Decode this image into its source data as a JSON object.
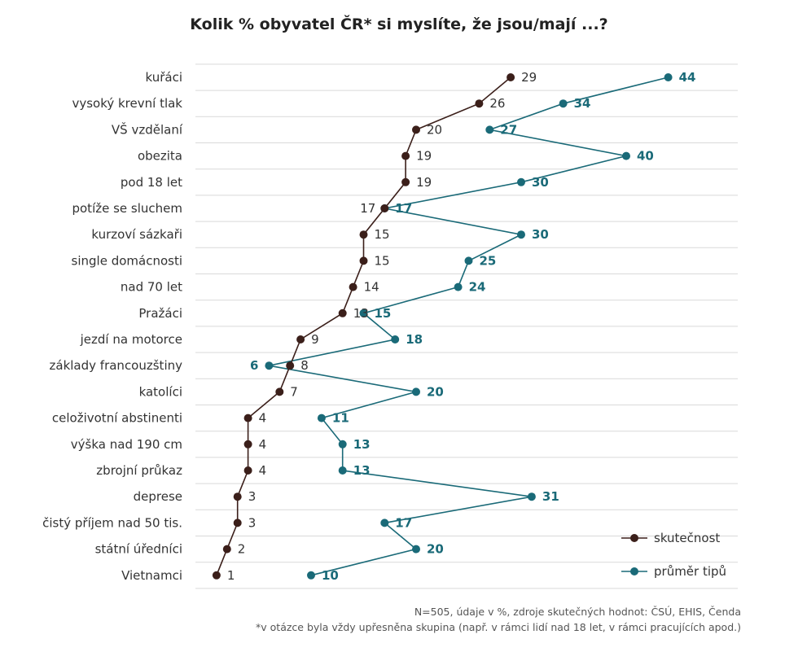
{
  "chart_data": {
    "type": "line",
    "title": "Kolik % obyvatel ČR* si myslíte, že jsou/mají ...?",
    "categories": [
      "kuřáci",
      "vysoký krevní tlak",
      "VŠ vzdělaní",
      "obezita",
      "pod 18 let",
      "potíže se sluchem",
      "kurzoví sázkaři",
      "single domácnosti",
      "nad 70 let",
      "Pražáci",
      "jezdí na motorce",
      "základy francouzštiny",
      "katolíci",
      "celoživotní abstinenti",
      "výška nad 190 cm",
      "zbrojní průkaz",
      "deprese",
      "čistý příjem nad 50 tis.",
      "státní úředníci",
      "Vietnamci"
    ],
    "series": [
      {
        "name": "skutečnost",
        "color": "#3b1f1a",
        "values": [
          29,
          26,
          20,
          19,
          19,
          17,
          15,
          15,
          14,
          13,
          9,
          8,
          7,
          4,
          4,
          4,
          3,
          3,
          2,
          1
        ]
      },
      {
        "name": "průměr tipů",
        "color": "#1a6a78",
        "values": [
          44,
          34,
          27,
          40,
          30,
          17,
          30,
          25,
          24,
          15,
          18,
          6,
          20,
          11,
          13,
          13,
          31,
          17,
          20,
          10
        ]
      }
    ],
    "xlabel": "",
    "ylabel": "",
    "xlim": [
      0,
      47
    ],
    "grid": true,
    "legend": "bottom-right"
  },
  "notes": [
    "N=505, údaje v %, zdroje skutečných hodnot: ČSÚ, EHIS, Čenda",
    "*v otázce byla vždy upřesněna skupina (např. v rámci lidí nad 18 let, v rámci pracujících apod.)"
  ]
}
